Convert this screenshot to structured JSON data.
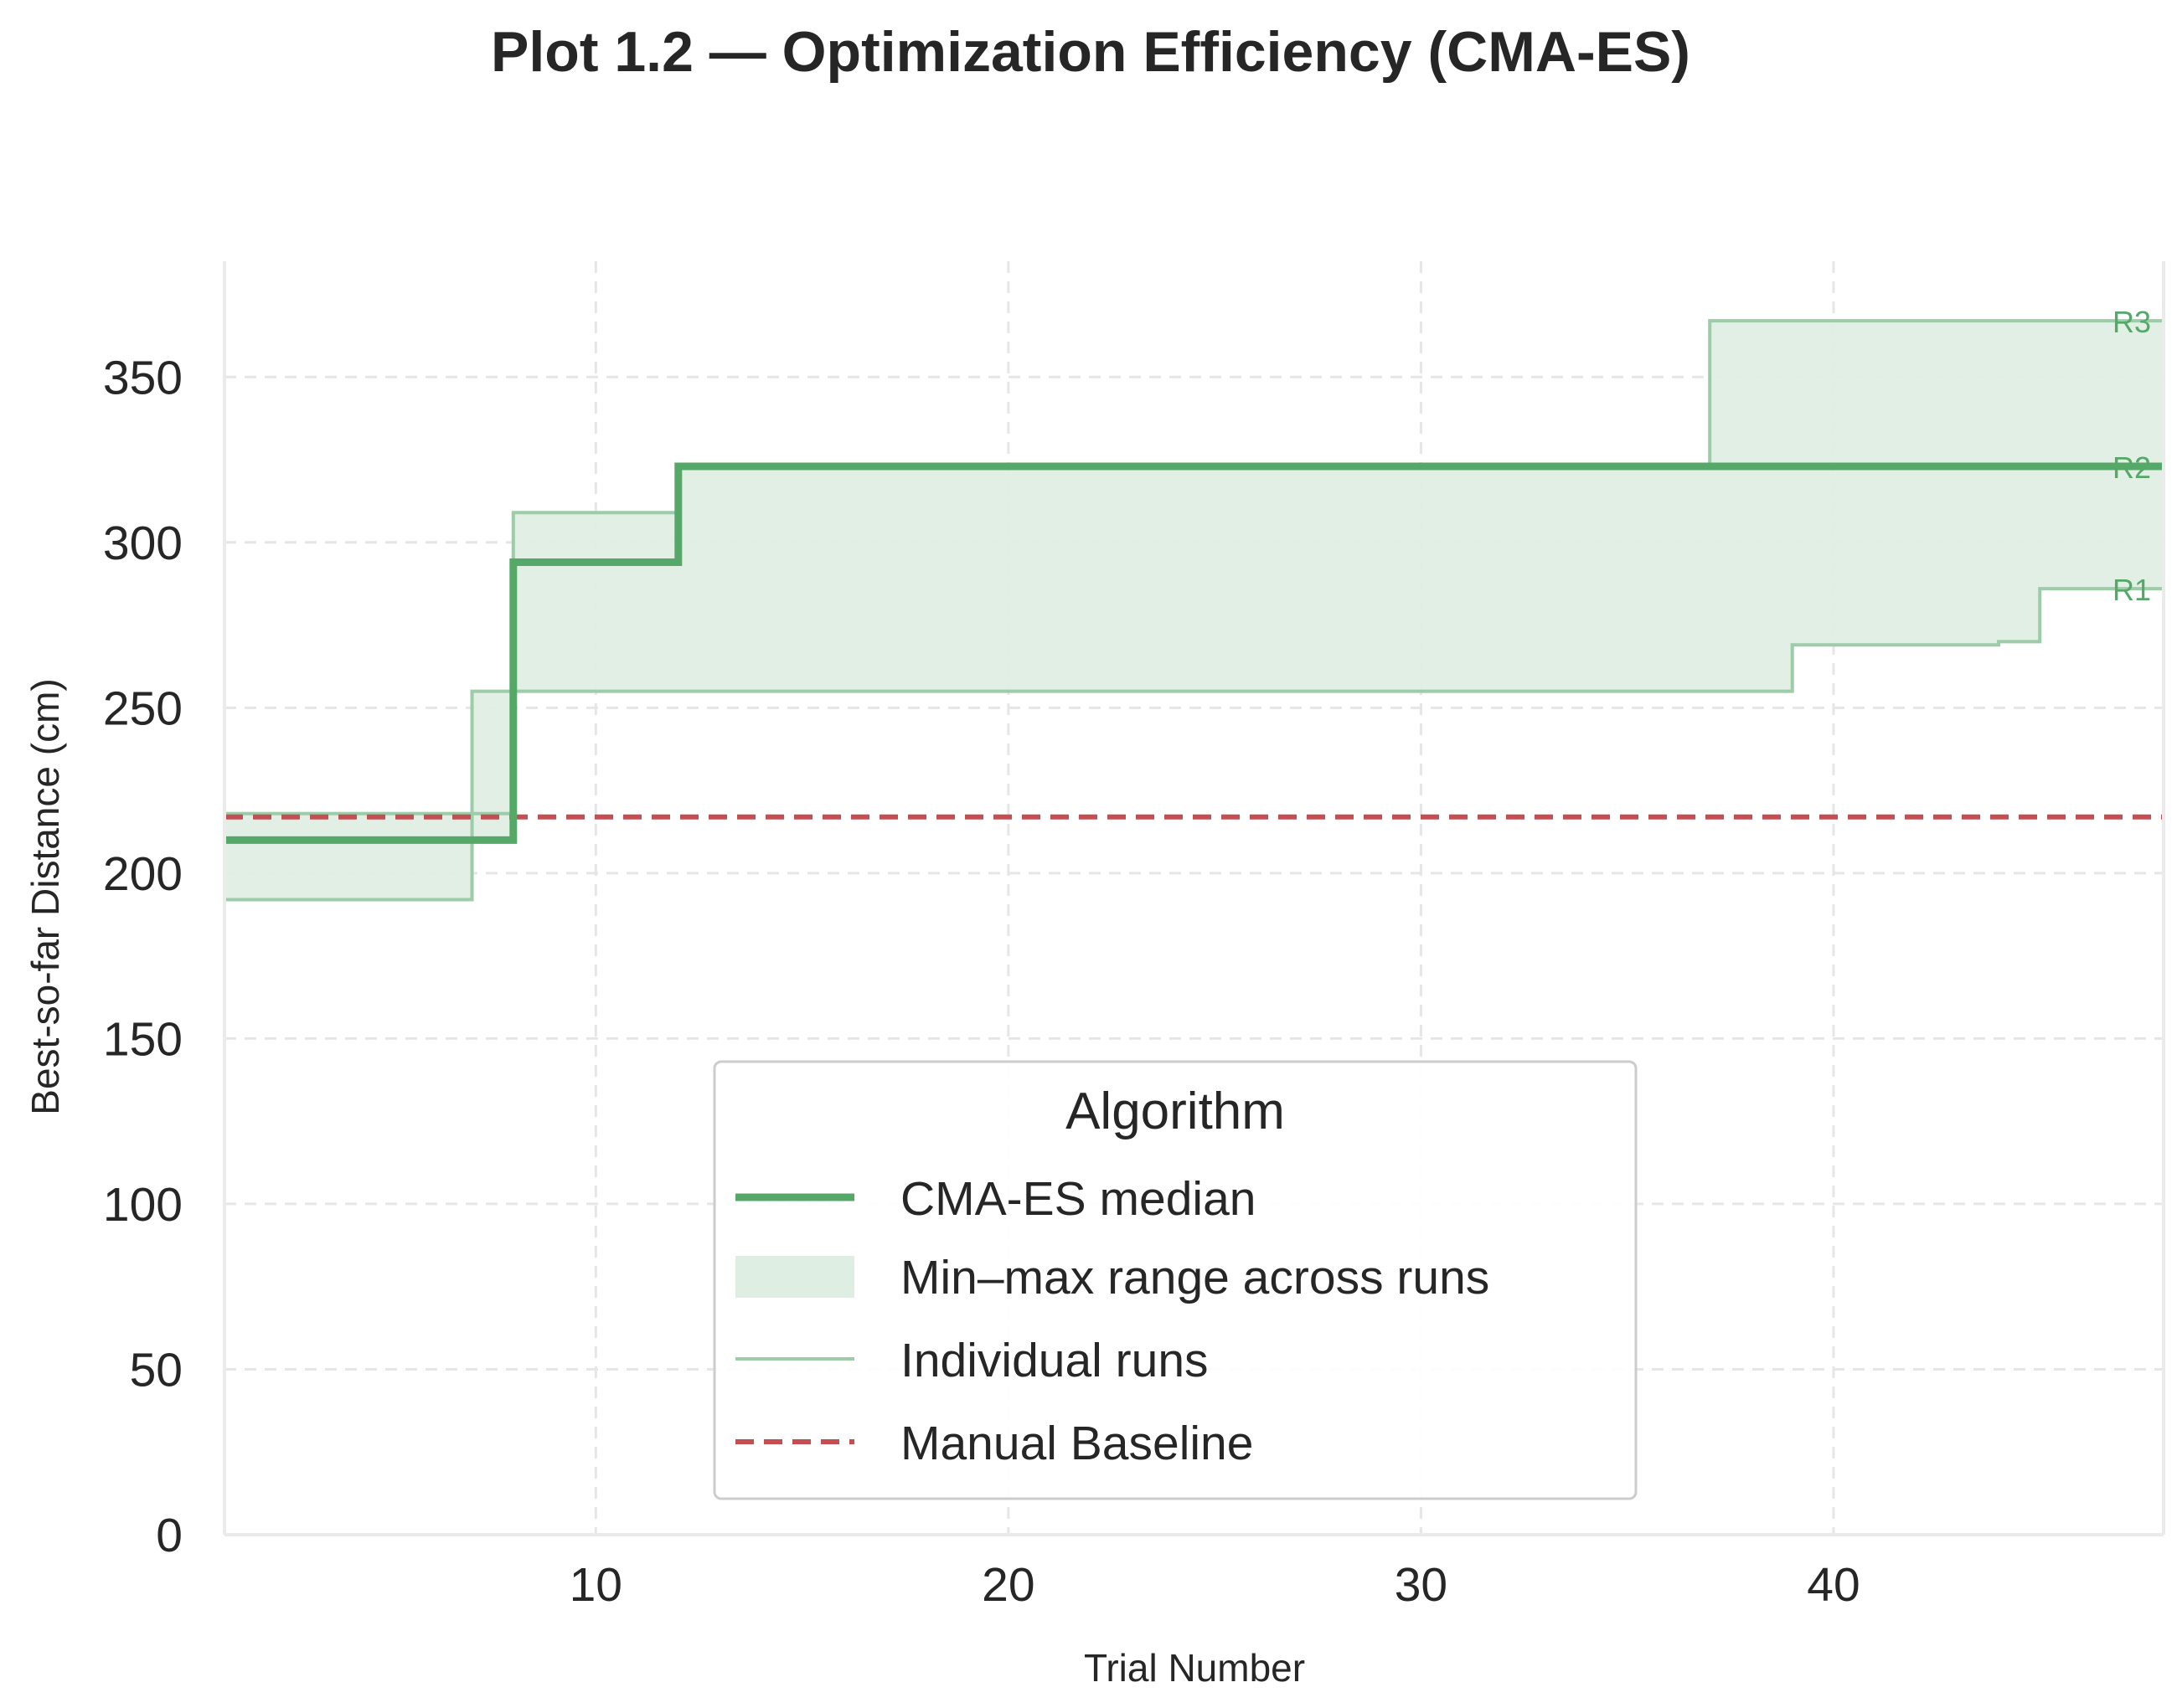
{
  "chart_data": {
    "type": "line",
    "title": "Plot 1.2 — Optimization Efficiency (CMA-ES)",
    "xlabel": "Trial Number",
    "ylabel": "Best-so-far Distance (cm)",
    "xlim": [
      1,
      48
    ],
    "ylim": [
      0,
      385
    ],
    "xticks": [
      10,
      20,
      30,
      40
    ],
    "yticks": [
      0,
      50,
      100,
      150,
      200,
      250,
      300,
      350
    ],
    "grid": true,
    "step": "post",
    "median": {
      "name": "CMA-ES median",
      "points": [
        [
          1,
          210
        ],
        [
          8,
          294
        ],
        [
          12,
          323
        ],
        [
          48,
          323
        ]
      ]
    },
    "runs": [
      {
        "label": "R1",
        "points": [
          [
            1,
            192
          ],
          [
            7,
            255
          ],
          [
            39,
            269
          ],
          [
            44,
            270
          ],
          [
            45,
            286
          ],
          [
            48,
            286
          ]
        ]
      },
      {
        "label": "R2",
        "points": [
          [
            1,
            210
          ],
          [
            8,
            294
          ],
          [
            12,
            323
          ],
          [
            48,
            323
          ]
        ]
      },
      {
        "label": "R3",
        "points": [
          [
            1,
            218
          ],
          [
            8,
            309
          ],
          [
            12,
            323
          ],
          [
            37,
            367
          ],
          [
            48,
            367
          ]
        ]
      }
    ],
    "baseline": {
      "name": "Manual Baseline",
      "value": 217
    },
    "legend": {
      "title": "Algorithm",
      "placement": "lower-center",
      "entries": [
        "CMA-ES median",
        "Min–max range across runs",
        "Individual runs",
        "Manual Baseline"
      ]
    },
    "colors": {
      "median": "#55a868",
      "range_fill": "#dfeee3",
      "run_line": "#9ccca8",
      "baseline": "#c44e52",
      "grid": "#e6e6e6",
      "spine": "#ebebeb"
    }
  }
}
